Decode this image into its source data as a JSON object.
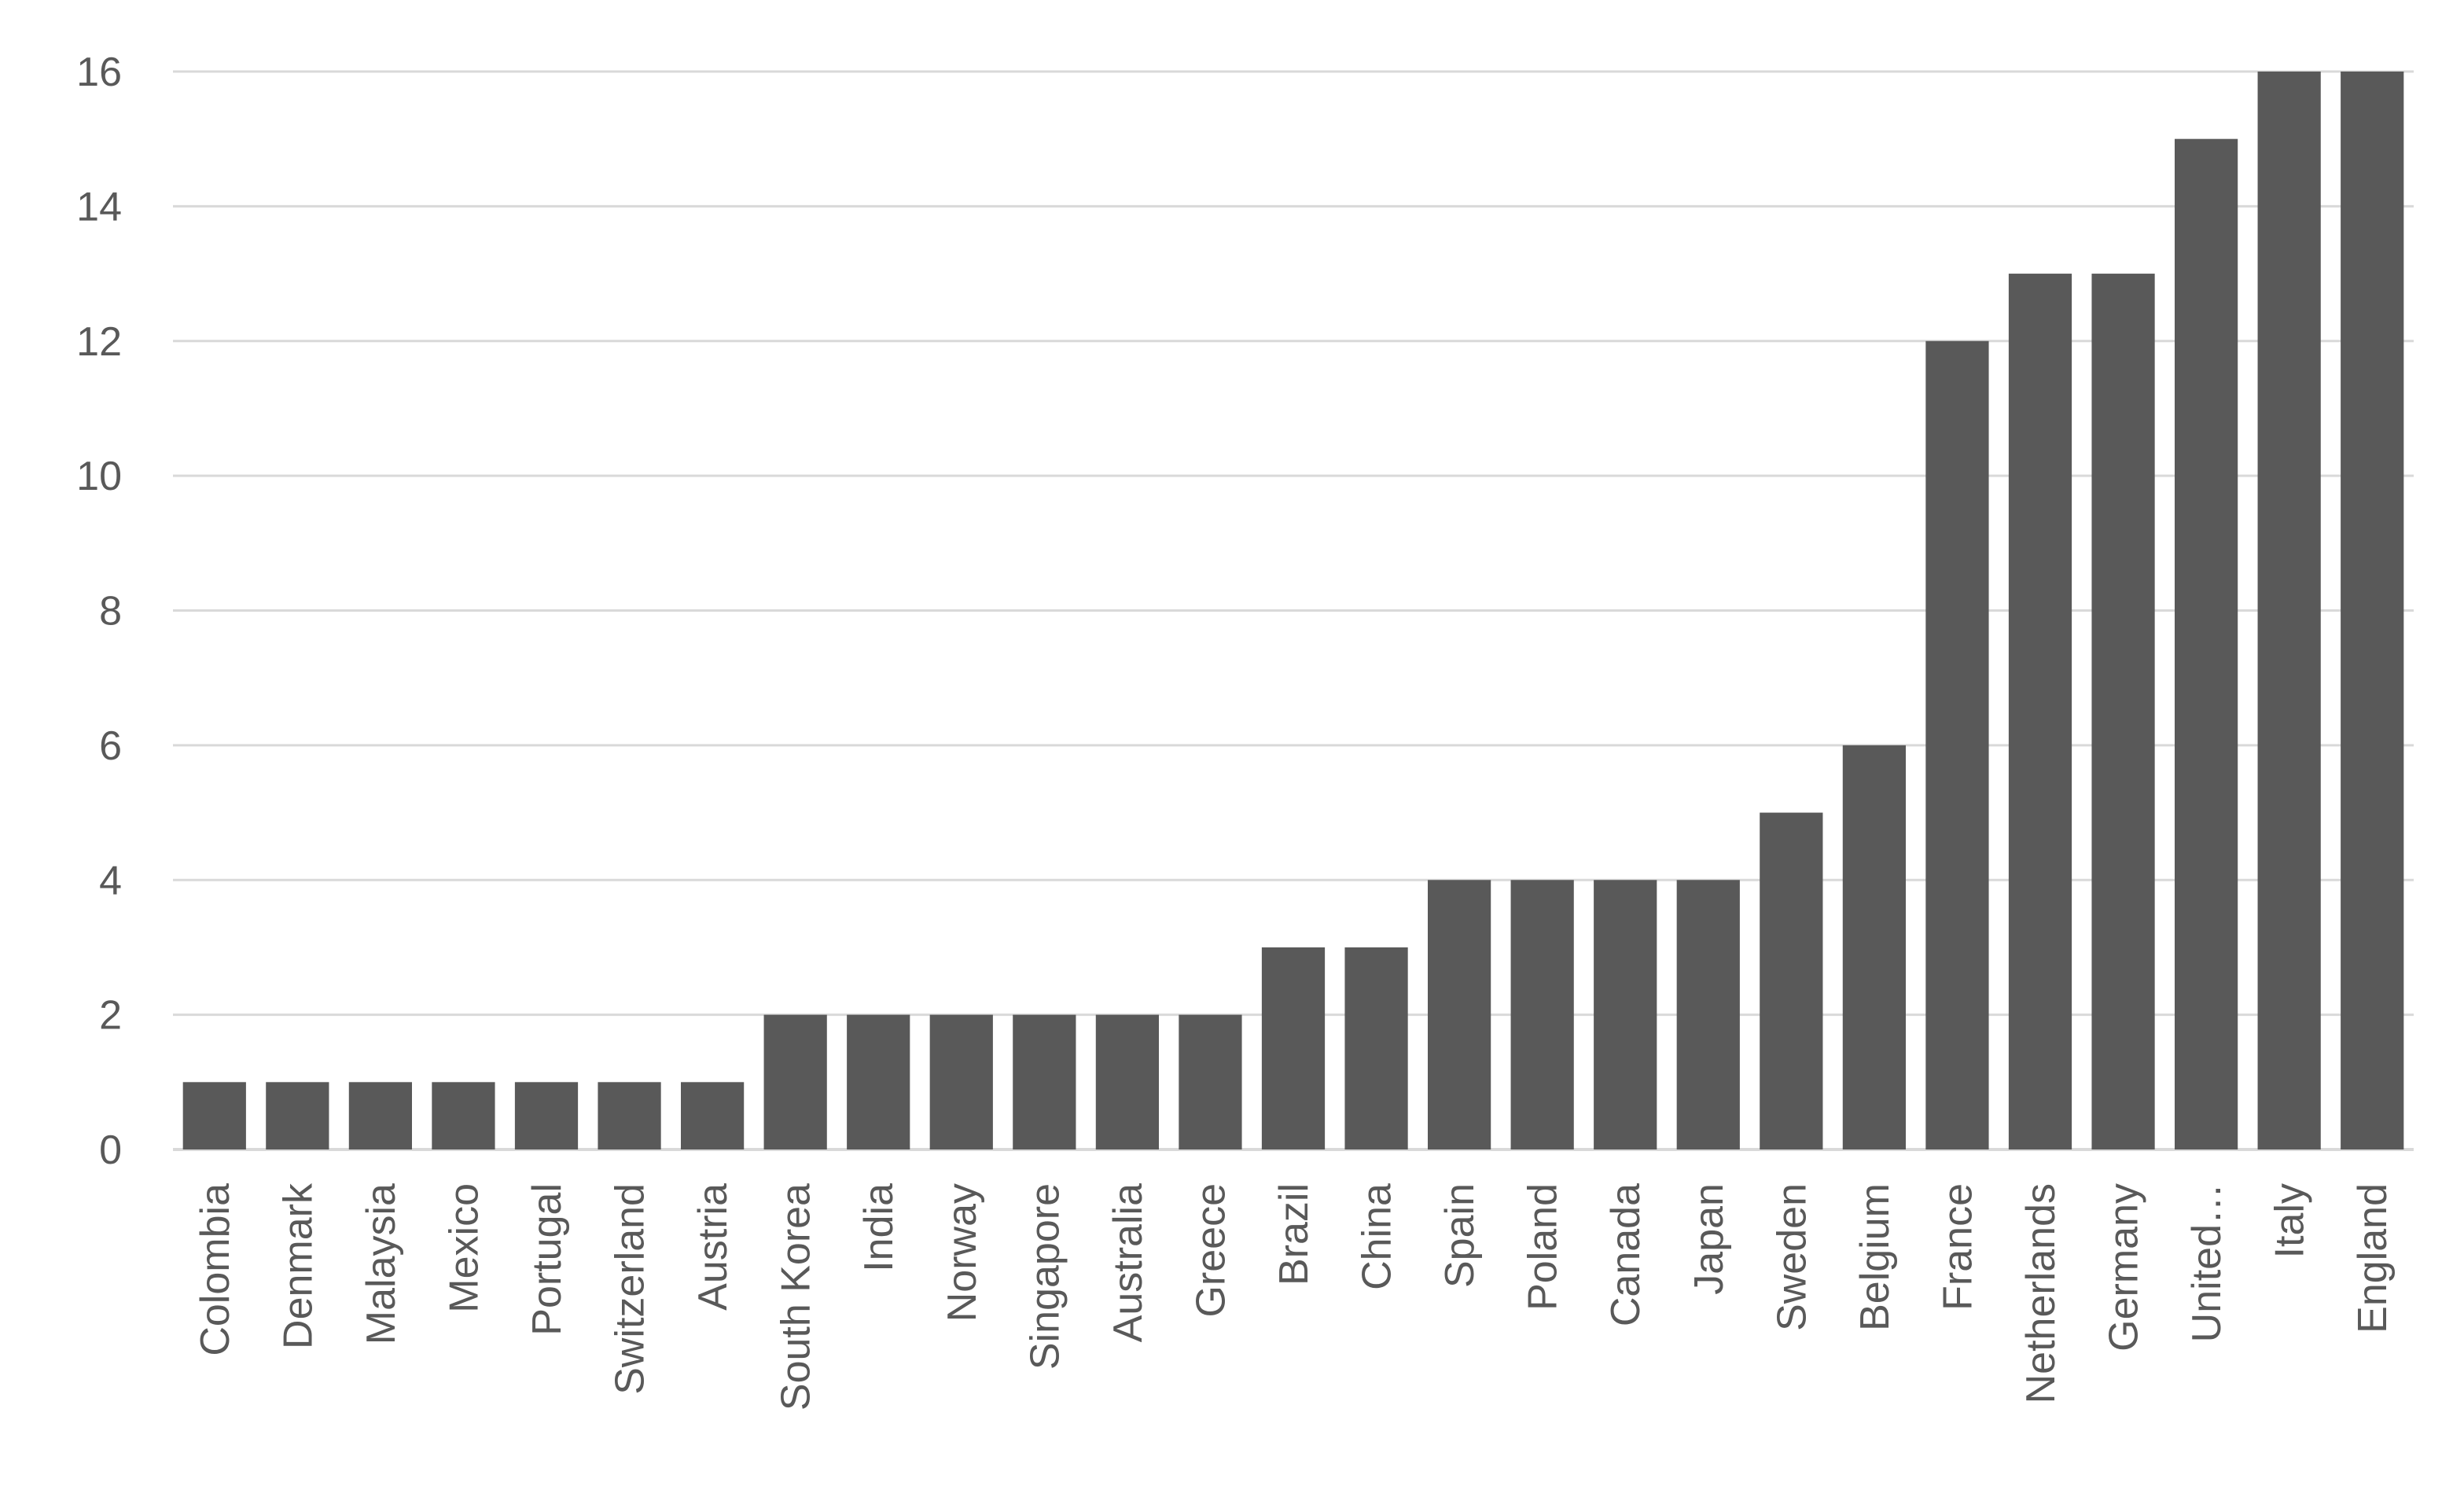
{
  "chart_data": {
    "type": "bar",
    "title": "",
    "xlabel": "",
    "ylabel": "",
    "ylim": [
      0,
      16
    ],
    "yticks": [
      0,
      2,
      4,
      6,
      8,
      10,
      12,
      14,
      16
    ],
    "grid": true,
    "legend": "none",
    "bar_color": "#595959",
    "grid_color": "#d9d9d9",
    "categories": [
      "Colombia",
      "Denmark",
      "Malaysia",
      "Mexico",
      "Portugal",
      "Switzerland",
      "Austria",
      "South Korea",
      "India",
      "Norway",
      "Singapore",
      "Australia",
      "Greece",
      "Brazil",
      "China",
      "Spain",
      "Poland",
      "Canada",
      "Japan",
      "Sweden",
      "Belgium",
      "France",
      "Netherlands",
      "Germany",
      "United…",
      "Italy",
      "England"
    ],
    "values": [
      1,
      1,
      1,
      1,
      1,
      1,
      1,
      2,
      2,
      2,
      2,
      2,
      2,
      3,
      3,
      4,
      4,
      4,
      4,
      5,
      6,
      12,
      13,
      13,
      15,
      16,
      16
    ]
  }
}
